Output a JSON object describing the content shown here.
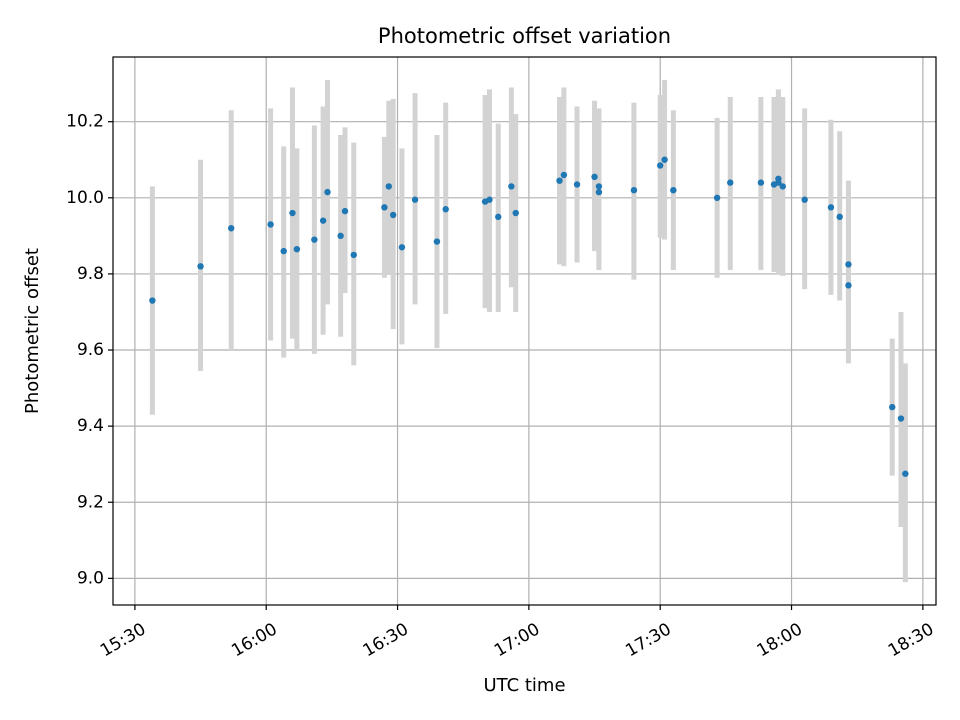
{
  "chart_data": {
    "type": "scatter",
    "title": "Photometric offset variation",
    "xlabel": "UTC time",
    "ylabel": "Photometric offset",
    "grid": true,
    "colors": {
      "point": "#1f77b4",
      "errorbar": "#d3d3d3",
      "grid": "#b0b0b0",
      "axis": "#000000"
    },
    "xlim": [
      "15:25",
      "18:33"
    ],
    "ylim": [
      8.93,
      10.37
    ],
    "x_ticks": [
      "15:30",
      "16:00",
      "16:30",
      "17:00",
      "17:30",
      "18:00",
      "18:30"
    ],
    "y_ticks": [
      "9.0",
      "9.2",
      "9.4",
      "9.6",
      "9.8",
      "10.0",
      "10.2"
    ],
    "series": [
      {
        "x": [
          "15:34",
          "15:45",
          "15:52",
          "16:01",
          "16:04",
          "16:06",
          "16:07",
          "16:11",
          "16:13",
          "16:14",
          "16:17",
          "16:18",
          "16:20",
          "16:27",
          "16:28",
          "16:29",
          "16:31",
          "16:34",
          "16:39",
          "16:41",
          "16:50",
          "16:51",
          "16:53",
          "16:56",
          "16:57",
          "17:07",
          "17:08",
          "17:11",
          "17:15",
          "17:16",
          "17:16",
          "17:24",
          "17:30",
          "17:31",
          "17:33",
          "17:43",
          "17:46",
          "17:53",
          "17:56",
          "17:57",
          "17:57",
          "17:58",
          "18:03",
          "18:09",
          "18:11",
          "18:13",
          "18:13",
          "18:23",
          "18:25",
          "18:26"
        ],
        "y": [
          9.73,
          9.82,
          9.92,
          9.93,
          9.86,
          9.96,
          9.865,
          9.89,
          9.94,
          10.015,
          9.9,
          9.965,
          9.85,
          9.975,
          10.03,
          9.955,
          9.87,
          9.995,
          9.885,
          9.97,
          9.99,
          9.995,
          9.95,
          10.03,
          9.96,
          10.045,
          10.06,
          10.035,
          10.055,
          10.03,
          10.015,
          10.02,
          10.085,
          10.1,
          10.02,
          10.0,
          10.04,
          10.04,
          10.035,
          10.05,
          10.04,
          10.03,
          9.995,
          9.975,
          9.95,
          9.77,
          9.825,
          9.45,
          9.42,
          9.275
        ],
        "y_low": [
          9.43,
          9.545,
          9.6,
          9.625,
          9.58,
          9.63,
          9.6,
          9.59,
          9.64,
          9.72,
          9.635,
          9.75,
          9.56,
          9.79,
          9.8,
          9.655,
          9.615,
          9.72,
          9.605,
          9.695,
          9.71,
          9.7,
          9.7,
          9.765,
          9.7,
          9.825,
          9.82,
          9.83,
          9.86,
          9.82,
          9.81,
          9.785,
          9.895,
          9.89,
          9.81,
          9.79,
          9.81,
          9.81,
          9.805,
          9.8,
          9.8,
          9.795,
          9.76,
          9.745,
          9.73,
          9.565,
          9.61,
          9.27,
          9.135,
          8.99
        ],
        "y_high": [
          10.03,
          10.1,
          10.23,
          10.235,
          10.135,
          10.29,
          10.13,
          10.19,
          10.24,
          10.31,
          10.165,
          10.185,
          10.145,
          10.16,
          10.255,
          10.26,
          10.13,
          10.275,
          10.165,
          10.25,
          10.27,
          10.285,
          10.195,
          10.29,
          10.22,
          10.265,
          10.29,
          10.24,
          10.255,
          10.235,
          10.22,
          10.25,
          10.27,
          10.31,
          10.23,
          10.21,
          10.265,
          10.265,
          10.265,
          10.285,
          10.275,
          10.265,
          10.235,
          10.205,
          10.175,
          9.985,
          10.045,
          9.63,
          9.7,
          9.565
        ]
      }
    ]
  }
}
